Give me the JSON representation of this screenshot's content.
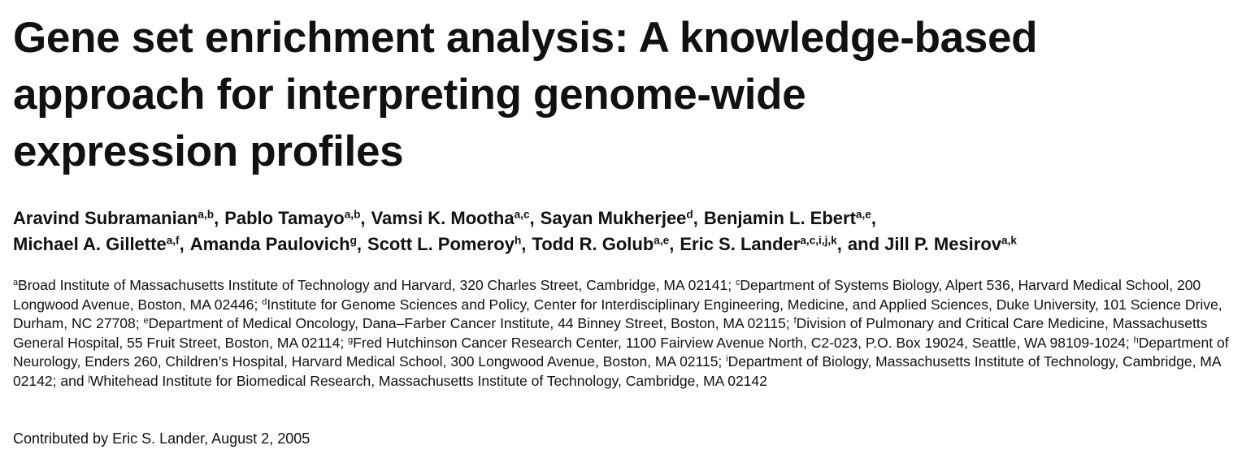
{
  "header": {
    "title_lines": [
      "Gene set enrichment analysis: A knowledge-based",
      "approach for interpreting genome-wide",
      "expression profiles"
    ],
    "authors": [
      {
        "name": "Aravind Subramanian",
        "sup": "a,b",
        "punct": ","
      },
      {
        "name": "Pablo Tamayo",
        "sup": "a,b",
        "punct": ","
      },
      {
        "name": "Vamsi K. Mootha",
        "sup": "a,c",
        "punct": ","
      },
      {
        "name": "Sayan Mukherjee",
        "sup": "d",
        "punct": ","
      },
      {
        "name": "Benjamin L. Ebert",
        "sup": "a,e",
        "punct": ","
      },
      {
        "name": "Michael A. Gillette",
        "sup": "a,f",
        "punct": ","
      },
      {
        "name": "Amanda Paulovich",
        "sup": "g",
        "punct": ","
      },
      {
        "name": "Scott L. Pomeroy",
        "sup": "h",
        "punct": ","
      },
      {
        "name": "Todd R. Golub",
        "sup": "a,e",
        "punct": ","
      },
      {
        "name": "Eric S. Lander",
        "sup": "a,c,i,j,k",
        "punct": ","
      },
      {
        "name": "Jill P. Mesirov",
        "sup": "a,k",
        "conjunction": "and"
      }
    ],
    "affiliations": [
      {
        "sup": "a",
        "text": "Broad Institute of Massachusetts Institute of Technology and Harvard, 320 Charles Street, Cambridge, MA 02141;"
      },
      {
        "sup": "c",
        "text": "Department of Systems Biology, Alpert 536, Harvard Medical School, 200 Longwood Avenue, Boston, MA 02446;"
      },
      {
        "sup": "d",
        "text": "Institute for Genome Sciences and Policy, Center for Interdisciplinary Engineering, Medicine, and Applied Sciences, Duke University, 101 Science Drive, Durham, NC 27708;"
      },
      {
        "sup": "e",
        "text": "Department of Medical Oncology, Dana–Farber Cancer Institute, 44 Binney Street, Boston, MA 02115;"
      },
      {
        "sup": "f",
        "text": "Division of Pulmonary and Critical Care Medicine, Massachusetts General Hospital, 55 Fruit Street, Boston, MA 02114;"
      },
      {
        "sup": "g",
        "text": "Fred Hutchinson Cancer Research Center, 1100 Fairview Avenue North, C2-023, P.O. Box 19024, Seattle, WA 98109-1024;"
      },
      {
        "sup": "h",
        "text": "Department of Neurology, Enders 260, Children’s Hospital, Harvard Medical School, 300 Longwood Avenue, Boston, MA 02115;"
      },
      {
        "sup": "i",
        "text": "Department of Biology, Massachusetts Institute of Technology, Cambridge, MA 02142; and"
      },
      {
        "sup": "j",
        "text": "Whitehead Institute for Biomedical Research, Massachusetts Institute of Technology, Cambridge, MA 02142"
      }
    ],
    "contributed": "Contributed by Eric S. Lander, August 2, 2005"
  }
}
